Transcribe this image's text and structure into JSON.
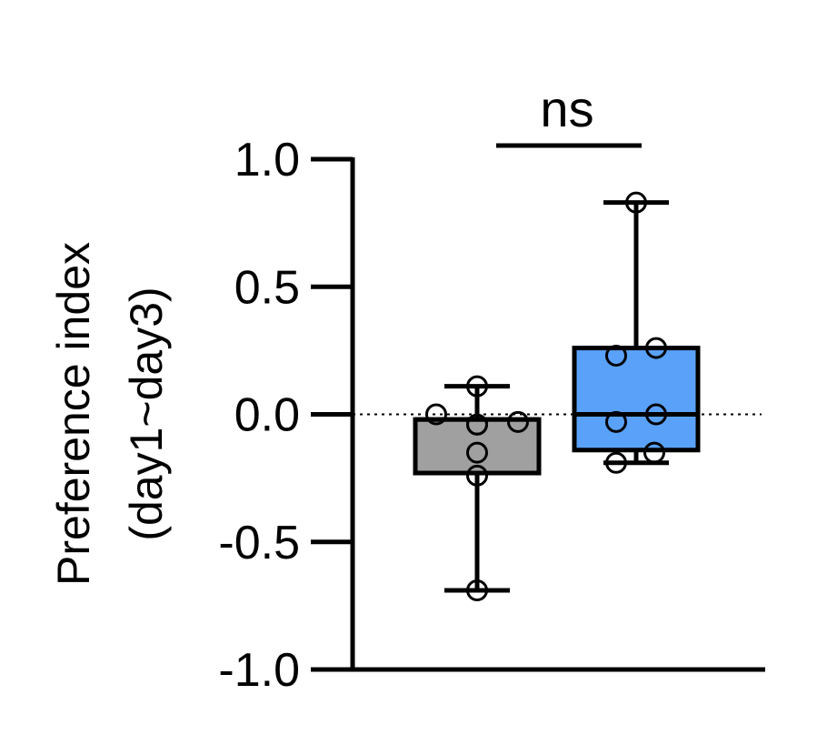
{
  "chart_data": {
    "type": "box",
    "ylabel_lines": [
      "Preference index",
      "(day1~day3)"
    ],
    "ylim": [
      -1.0,
      1.0
    ],
    "yticks": [
      1.0,
      0.5,
      0.0,
      -0.5,
      -1.0
    ],
    "ytick_labels": [
      "1.0",
      "0.5",
      "0.0",
      "-0.5",
      "-1.0"
    ],
    "zero_reference_line": "dotted",
    "significance": {
      "label": "ns",
      "between": [
        0,
        1
      ]
    },
    "groups": [
      {
        "color": "#a0a0a0",
        "whisker_low": -0.69,
        "q1": -0.23,
        "median": -0.02,
        "q3": -0.02,
        "whisker_high": 0.11,
        "points": [
          -0.69,
          -0.24,
          -0.15,
          -0.04,
          -0.04,
          -0.03,
          0.0,
          0.11
        ]
      },
      {
        "color": "#5aa2f9",
        "whisker_low": -0.19,
        "q1": -0.14,
        "median": 0.0,
        "q3": 0.26,
        "whisker_high": 0.83,
        "points": [
          -0.19,
          -0.15,
          -0.03,
          0.0,
          0.23,
          0.26,
          0.83
        ]
      }
    ]
  }
}
